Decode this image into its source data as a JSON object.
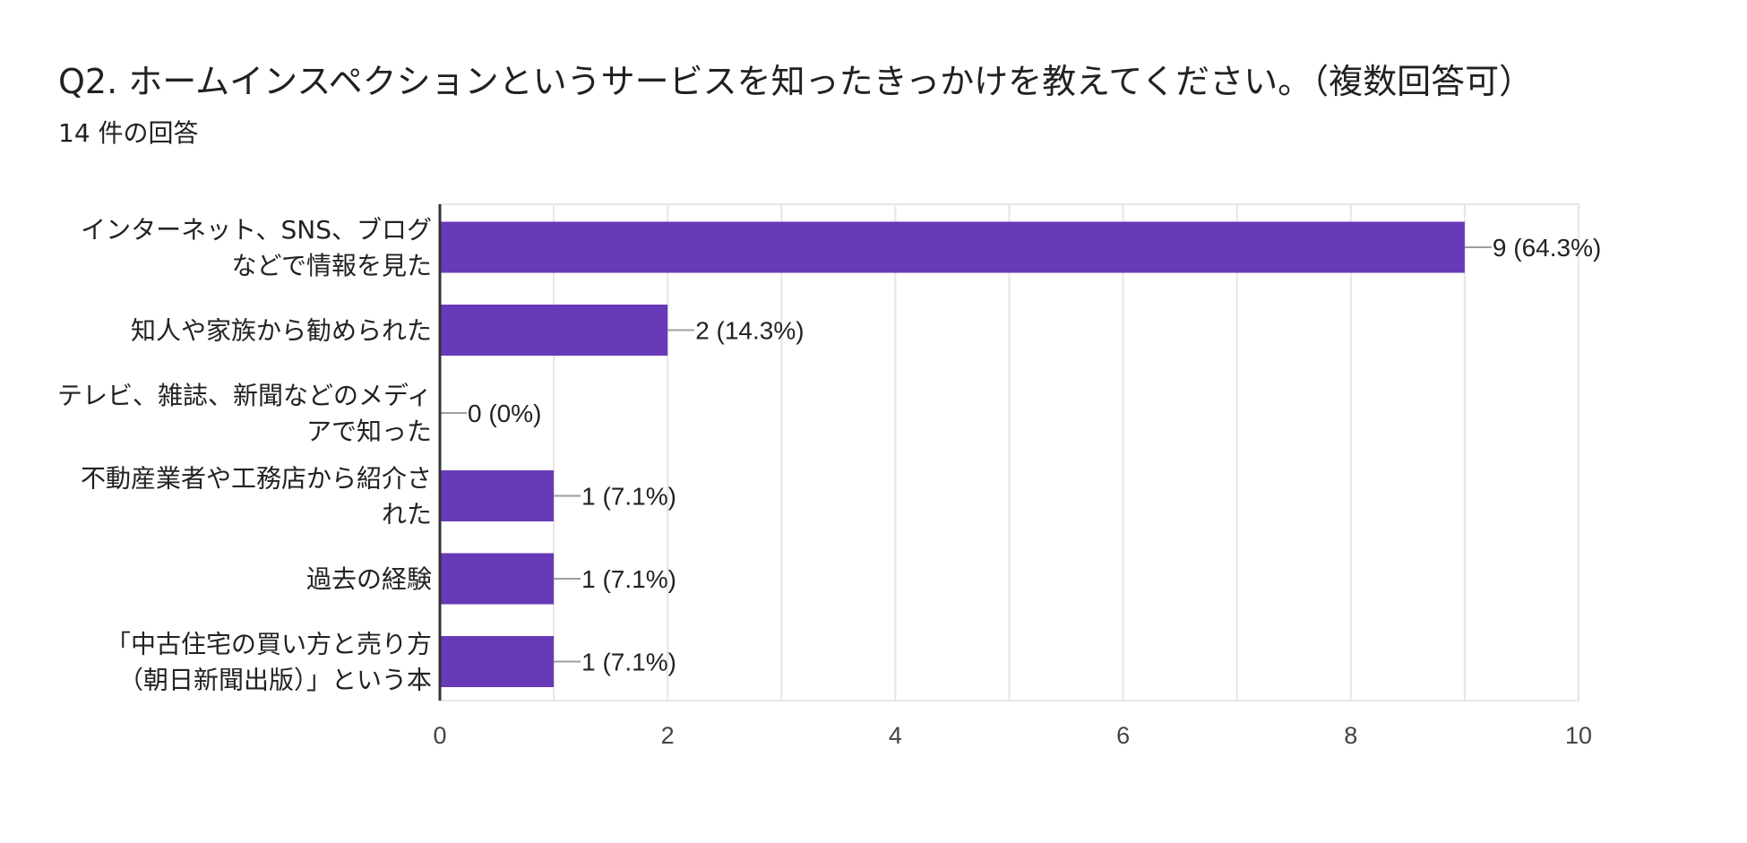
{
  "header": {
    "title": "Q2. ホームインスペクションというサービスを知ったきっかけを教えてください。（複数回答可）",
    "response_count": "14 件の回答"
  },
  "colors": {
    "bar": "#673ab7",
    "grid": "#e6e6e6",
    "axis": "#333333",
    "connector": "#9e9e9e"
  },
  "chart_data": {
    "type": "bar",
    "orientation": "horizontal",
    "title": "Q2. ホームインスペクションというサービスを知ったきっかけを教えてください。（複数回答可）",
    "subtitle": "14 件の回答",
    "categories": [
      [
        "インターネット、SNS、ブログ",
        "などで情報を見た"
      ],
      [
        "知人や家族から勧められた"
      ],
      [
        "テレビ、雑誌、新聞などのメディ",
        "アで知った"
      ],
      [
        "不動産業者や工務店から紹介さ",
        "れた"
      ],
      [
        "過去の経験"
      ],
      [
        "「中古住宅の買い方と売り方",
        "（朝日新聞出版）」という本"
      ]
    ],
    "values": [
      9,
      2,
      0,
      1,
      1,
      1
    ],
    "data_labels": [
      "9 (64.3%)",
      "2 (14.3%)",
      "0 (0%)",
      "1 (7.1%)",
      "1 (7.1%)",
      "1 (7.1%)"
    ],
    "xlim": [
      0,
      10
    ],
    "xticks": [
      0,
      2,
      4,
      6,
      8,
      10
    ],
    "grid": true
  }
}
